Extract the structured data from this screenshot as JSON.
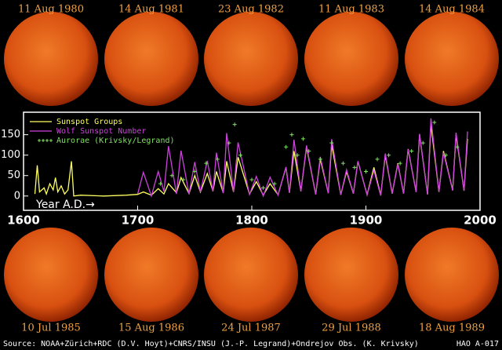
{
  "top_images": [
    {
      "label": "11 Aug 1980"
    },
    {
      "label": "14 Aug 1981"
    },
    {
      "label": "23 Aug 1982"
    },
    {
      "label": "11 Aug 1983"
    },
    {
      "label": "14 Aug 1984"
    }
  ],
  "bottom_images": [
    {
      "label": "10 Jul 1985"
    },
    {
      "label": "15 Aug 1986"
    },
    {
      "label": "24 Jul 1987"
    },
    {
      "label": "29 Jul 1988"
    },
    {
      "label": "18 Aug 1989"
    }
  ],
  "source": "Source: NOAA+Zürich+RDC (D.V. Hoyt)+CNRS/INSU (J.-P. Legrand)+Ondrejov Obs. (K. Krivsky)",
  "code": "HAO A-017",
  "chart_data": {
    "type": "line",
    "annotation": "Year A.D.→",
    "xlim": [
      1600,
      2000
    ],
    "xticks": [
      1600,
      1700,
      1800,
      1900,
      2000
    ],
    "ylim": [
      -35,
      205
    ],
    "yticks": [
      0,
      50,
      100,
      150
    ],
    "series": [
      {
        "name": "Sunspot Groups",
        "color": "#ffff60",
        "x": [
          1610,
          1612,
          1614,
          1618,
          1620,
          1623,
          1626,
          1628,
          1630,
          1633,
          1636,
          1639,
          1642,
          1644,
          1650,
          1670,
          1690,
          1700,
          1705,
          1712,
          1718,
          1723,
          1727,
          1734,
          1738,
          1745,
          1750,
          1755,
          1761,
          1766,
          1769,
          1775,
          1778,
          1784,
          1788,
          1798,
          1804,
          1810,
          1816,
          1823,
          1830,
          1833,
          1837,
          1843,
          1848,
          1856,
          1860,
          1867,
          1870,
          1878,
          1883,
          1889,
          1893,
          1901,
          1907,
          1913,
          1917,
          1923,
          1928,
          1933,
          1937,
          1944,
          1947,
          1954,
          1957,
          1964,
          1968,
          1976,
          1979,
          1986,
          1989
        ],
        "values": [
          5,
          75,
          10,
          20,
          5,
          30,
          15,
          45,
          10,
          25,
          5,
          15,
          85,
          0,
          2,
          0,
          2,
          4,
          10,
          2,
          18,
          5,
          30,
          8,
          45,
          6,
          50,
          10,
          55,
          12,
          60,
          8,
          85,
          10,
          95,
          5,
          35,
          2,
          30,
          3,
          70,
          8,
          110,
          12,
          120,
          4,
          90,
          7,
          125,
          3,
          60,
          6,
          85,
          3,
          70,
          2,
          100,
          6,
          80,
          6,
          115,
          10,
          150,
          4,
          175,
          10,
          110,
          14,
          150,
          13,
          140
        ]
      },
      {
        "name": "Wolf Sunspot Number",
        "color": "#d040e0",
        "x": [
          1700,
          1705,
          1712,
          1718,
          1723,
          1727,
          1734,
          1738,
          1745,
          1750,
          1755,
          1761,
          1766,
          1769,
          1775,
          1778,
          1784,
          1788,
          1798,
          1804,
          1810,
          1816,
          1823,
          1830,
          1833,
          1837,
          1843,
          1848,
          1856,
          1860,
          1867,
          1870,
          1878,
          1883,
          1889,
          1893,
          1901,
          1907,
          1913,
          1917,
          1923,
          1928,
          1933,
          1937,
          1944,
          1947,
          1954,
          1957,
          1964,
          1968,
          1976,
          1979,
          1986,
          1989
        ],
        "values": [
          5,
          58,
          0,
          60,
          11,
          122,
          5,
          111,
          5,
          83,
          10,
          86,
          11,
          106,
          7,
          154,
          10,
          131,
          4,
          48,
          0,
          46,
          2,
          71,
          8,
          138,
          11,
          124,
          4,
          96,
          7,
          139,
          3,
          64,
          6,
          85,
          3,
          62,
          1,
          104,
          6,
          78,
          6,
          114,
          10,
          152,
          4,
          190,
          10,
          106,
          13,
          155,
          13,
          158
        ]
      },
      {
        "name": "Aurorae (Krivsky/Legrand)",
        "color": "#80e060",
        "marker": "plus",
        "x": [
          1720,
          1730,
          1740,
          1750,
          1760,
          1770,
          1780,
          1785,
          1790,
          1800,
          1810,
          1820,
          1830,
          1835,
          1840,
          1845,
          1850,
          1860,
          1870,
          1880,
          1890,
          1900,
          1910,
          1920,
          1930,
          1940,
          1950,
          1960,
          1970,
          1980
        ],
        "values": [
          30,
          50,
          40,
          60,
          80,
          90,
          130,
          175,
          100,
          40,
          20,
          30,
          120,
          150,
          100,
          140,
          110,
          90,
          130,
          80,
          70,
          60,
          90,
          100,
          80,
          110,
          130,
          180,
          100,
          120
        ]
      }
    ]
  }
}
